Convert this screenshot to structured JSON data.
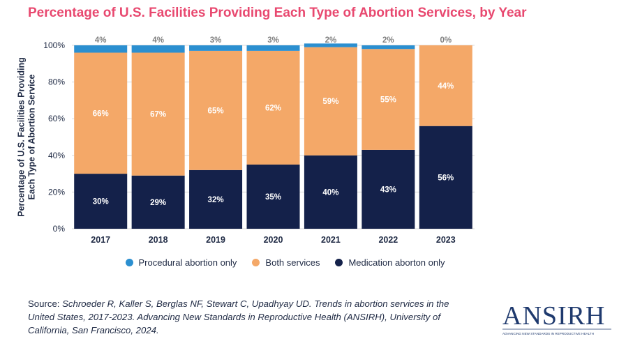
{
  "chart_data": {
    "type": "bar",
    "stacked": true,
    "title": "Percentage of U.S. Facilities Providing Each Type of Abortion Services, by Year",
    "ylabel": "Percentage of U.S. Facilities Providing Each Type of  Abortion Service",
    "xlabel": "",
    "ylim": [
      0,
      100
    ],
    "yticks": [
      "0%",
      "20%",
      "40%",
      "60%",
      "80%",
      "100%"
    ],
    "categories": [
      "2017",
      "2018",
      "2019",
      "2020",
      "2021",
      "2022",
      "2023"
    ],
    "series": [
      {
        "name": "Medication aborton only",
        "color": "#14214a",
        "values": [
          30,
          29,
          32,
          35,
          40,
          43,
          56
        ],
        "labels": [
          "30%",
          "29%",
          "32%",
          "35%",
          "40%",
          "43%",
          "56%"
        ]
      },
      {
        "name": "Both services",
        "color": "#f4a868",
        "values": [
          66,
          67,
          65,
          62,
          59,
          55,
          44
        ],
        "labels": [
          "66%",
          "67%",
          "65%",
          "62%",
          "59%",
          "55%",
          "44%"
        ]
      },
      {
        "name": "Procedural abortion only",
        "color": "#2b8fd0",
        "values": [
          4,
          4,
          3,
          3,
          2,
          2,
          0
        ],
        "labels": [
          "4%",
          "4%",
          "3%",
          "3%",
          "2%",
          "2%",
          "0%"
        ]
      }
    ],
    "legend_order": [
      "Procedural abortion only",
      "Both services",
      "Medication aborton only"
    ],
    "legend_position": "bottom",
    "grid": true
  },
  "source": {
    "prefix": "Source: ",
    "text": "Schroeder R, Kaller S, Berglas NF, Stewart C, Upadhyay UD. Trends in abortion services in the United States, 2017-2023. Advancing New Standards in Reproductive Health (ANSIRH), University of California, San Francisco, 2024."
  },
  "logo": {
    "text": "ANSIRH",
    "tagline": "ADVANCING NEW STANDARDS IN REPRODUCTIVE HEALTH",
    "color": "#1f3a6e"
  }
}
